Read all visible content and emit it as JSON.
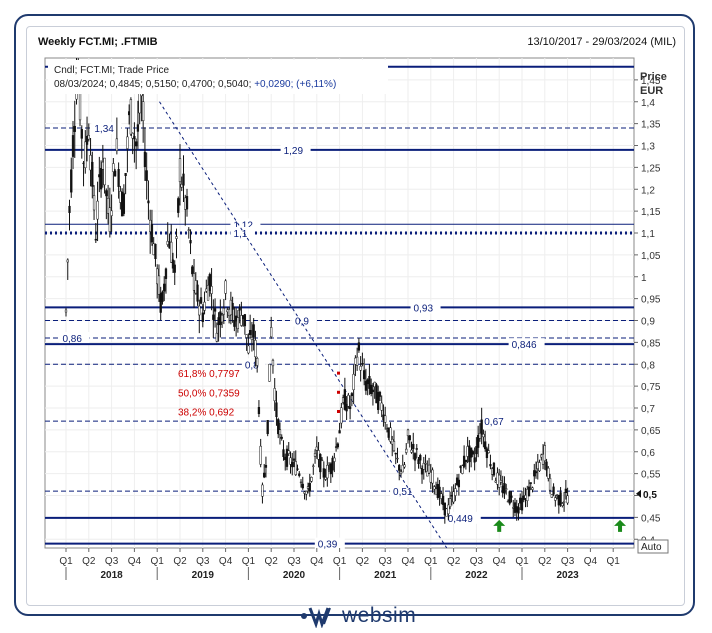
{
  "header": {
    "title": "Weekly FCT.MI; .FTMIB",
    "range": "13/10/2017 - 29/03/2024 (MIL)"
  },
  "legend": {
    "line1": "Cndl; FCT.MI; Trade Price",
    "line2_ohlc": "08/03/2024; 0,4845; 0,5150; 0,4700; 0,5040;",
    "line2_change": "+0,0290; (+6,11%)"
  },
  "axis": {
    "price_label": "Price",
    "currency_label": "EUR",
    "auto_label": "Auto",
    "current_price_label": "0,5"
  },
  "logo": {
    "text": "websim"
  },
  "colors": {
    "navy": "#0a1e7a",
    "candle": "#111111",
    "fib": "#cc0000",
    "axis_text": "#333333",
    "arrow": "#1a8a1a"
  },
  "chart_data": {
    "type": "candlestick",
    "title": "Weekly FCT.MI; .FTMIB",
    "ylabel": "Price EUR",
    "ylim": [
      0.38,
      1.5
    ],
    "y_ticks": [
      {
        "v": 0.4,
        "label": "0,4"
      },
      {
        "v": 0.45,
        "label": "0,45"
      },
      {
        "v": 0.5,
        "label": "0,5"
      },
      {
        "v": 0.55,
        "label": "0,55"
      },
      {
        "v": 0.6,
        "label": "0,6"
      },
      {
        "v": 0.65,
        "label": "0,65"
      },
      {
        "v": 0.7,
        "label": "0,7"
      },
      {
        "v": 0.75,
        "label": "0,75"
      },
      {
        "v": 0.8,
        "label": "0,8"
      },
      {
        "v": 0.85,
        "label": "0,85"
      },
      {
        "v": 0.9,
        "label": "0,9"
      },
      {
        "v": 0.95,
        "label": "0,95"
      },
      {
        "v": 1.0,
        "label": "1"
      },
      {
        "v": 1.05,
        "label": "1,05"
      },
      {
        "v": 1.1,
        "label": "1,1"
      },
      {
        "v": 1.15,
        "label": "1,15"
      },
      {
        "v": 1.2,
        "label": "1,2"
      },
      {
        "v": 1.25,
        "label": "1,25"
      },
      {
        "v": 1.3,
        "label": "1,3"
      },
      {
        "v": 1.35,
        "label": "1,35"
      },
      {
        "v": 1.4,
        "label": "1,4"
      },
      {
        "v": 1.45,
        "label": "1,45"
      }
    ],
    "quarters": [
      "Q1",
      "Q2",
      "Q3",
      "Q4",
      "Q1",
      "Q2",
      "Q3",
      "Q4",
      "Q1",
      "Q2",
      "Q3",
      "Q4",
      "Q1",
      "Q2",
      "Q3",
      "Q4",
      "Q1",
      "Q2",
      "Q3",
      "Q4",
      "Q1",
      "Q2",
      "Q3",
      "Q4",
      "Q1"
    ],
    "years": [
      {
        "label": "2018",
        "q_start": 0
      },
      {
        "label": "2019",
        "q_start": 4
      },
      {
        "label": "2020",
        "q_start": 8
      },
      {
        "label": "2021",
        "q_start": 12
      },
      {
        "label": "2022",
        "q_start": 16
      },
      {
        "label": "2023",
        "q_start": 20
      }
    ],
    "price_path": [
      [
        0,
        0.92
      ],
      [
        0.15,
        1.15
      ],
      [
        0.3,
        1.3
      ],
      [
        0.5,
        1.48
      ],
      [
        0.8,
        1.25
      ],
      [
        1.0,
        1.35
      ],
      [
        1.3,
        1.1
      ],
      [
        1.6,
        1.28
      ],
      [
        1.9,
        1.12
      ],
      [
        2.2,
        1.3
      ],
      [
        2.5,
        1.15
      ],
      [
        2.8,
        1.38
      ],
      [
        3.1,
        1.3
      ],
      [
        3.3,
        1.42
      ],
      [
        3.6,
        1.18
      ],
      [
        3.9,
        1.05
      ],
      [
        4.2,
        0.92
      ],
      [
        4.5,
        1.1
      ],
      [
        4.8,
        1.0
      ],
      [
        5.0,
        1.25
      ],
      [
        5.3,
        1.15
      ],
      [
        5.6,
        0.98
      ],
      [
        6.0,
        0.92
      ],
      [
        6.3,
        1.0
      ],
      [
        6.6,
        0.88
      ],
      [
        7.0,
        0.96
      ],
      [
        7.4,
        0.9
      ],
      [
        7.8,
        0.92
      ],
      [
        8.0,
        0.83
      ],
      [
        8.2,
        0.88
      ],
      [
        8.4,
        0.8
      ],
      [
        8.6,
        0.5
      ],
      [
        8.8,
        0.6
      ],
      [
        9.0,
        0.88
      ],
      [
        9.2,
        0.7
      ],
      [
        9.5,
        0.6
      ],
      [
        9.8,
        0.58
      ],
      [
        10.2,
        0.56
      ],
      [
        10.6,
        0.5
      ],
      [
        11.0,
        0.6
      ],
      [
        11.3,
        0.55
      ],
      [
        11.6,
        0.56
      ],
      [
        11.9,
        0.62
      ],
      [
        12.2,
        0.72
      ],
      [
        12.5,
        0.7
      ],
      [
        12.8,
        0.84
      ],
      [
        13.1,
        0.76
      ],
      [
        13.5,
        0.74
      ],
      [
        13.9,
        0.7
      ],
      [
        14.2,
        0.64
      ],
      [
        14.5,
        0.58
      ],
      [
        14.8,
        0.55
      ],
      [
        15.0,
        0.63
      ],
      [
        15.3,
        0.6
      ],
      [
        15.7,
        0.56
      ],
      [
        16.0,
        0.55
      ],
      [
        16.4,
        0.5
      ],
      [
        16.7,
        0.46
      ],
      [
        17.0,
        0.5
      ],
      [
        17.3,
        0.55
      ],
      [
        17.6,
        0.6
      ],
      [
        17.9,
        0.58
      ],
      [
        18.2,
        0.66
      ],
      [
        18.5,
        0.6
      ],
      [
        18.8,
        0.55
      ],
      [
        19.1,
        0.52
      ],
      [
        19.4,
        0.5
      ],
      [
        19.8,
        0.47
      ],
      [
        20.1,
        0.49
      ],
      [
        20.4,
        0.52
      ],
      [
        20.7,
        0.56
      ],
      [
        21.0,
        0.6
      ],
      [
        21.2,
        0.53
      ],
      [
        21.4,
        0.5
      ],
      [
        21.7,
        0.49
      ],
      [
        22.0,
        0.5
      ]
    ],
    "horizontal_levels": [
      {
        "value": 1.48,
        "style": "solid",
        "label": ""
      },
      {
        "value": 1.34,
        "style": "dashed",
        "label": "1,34",
        "label_q": 1.2
      },
      {
        "value": 1.29,
        "style": "solid",
        "label": "1,29",
        "label_q": 9.5
      },
      {
        "value": 1.12,
        "style": "thin",
        "label": "1,12",
        "label_q": 7.3
      },
      {
        "value": 1.1,
        "style": "dotted",
        "label": "1,1",
        "label_q": 7.3
      },
      {
        "value": 0.93,
        "style": "solid",
        "label": "0,93",
        "label_q": 15.2
      },
      {
        "value": 0.9,
        "style": "dashed",
        "label": "0,9",
        "label_q": 10.0
      },
      {
        "value": 0.86,
        "style": "dashed",
        "label": "0,86",
        "label_q": -0.2
      },
      {
        "value": 0.846,
        "style": "solid",
        "label": "0,846",
        "label_q": 19.5
      },
      {
        "value": 0.8,
        "style": "dashed",
        "label": "0,8",
        "label_q": 7.8
      },
      {
        "value": 0.67,
        "style": "dashed",
        "label": "0,67",
        "label_q": 18.3
      },
      {
        "value": 0.51,
        "style": "dashed",
        "label": "0,51",
        "label_q": 14.3
      },
      {
        "value": 0.449,
        "style": "solid",
        "label": "0,449",
        "label_q": 16.7
      },
      {
        "value": 0.39,
        "style": "solid",
        "label": "0,39",
        "label_q": 11.0
      }
    ],
    "trendline": {
      "from": [
        4.1,
        1.4
      ],
      "to": [
        16.7,
        0.38
      ]
    },
    "fibonacci": [
      {
        "label": "61,8%  0,7797",
        "value": 0.7797
      },
      {
        "label": "50,0%  0,7359",
        "value": 0.7359
      },
      {
        "label": "38,2%  0,692",
        "value": 0.692
      }
    ],
    "arrows": [
      {
        "q": 19.0,
        "value": 0.449
      },
      {
        "q": 24.3,
        "value": 0.449
      }
    ],
    "last_price": 0.504
  }
}
